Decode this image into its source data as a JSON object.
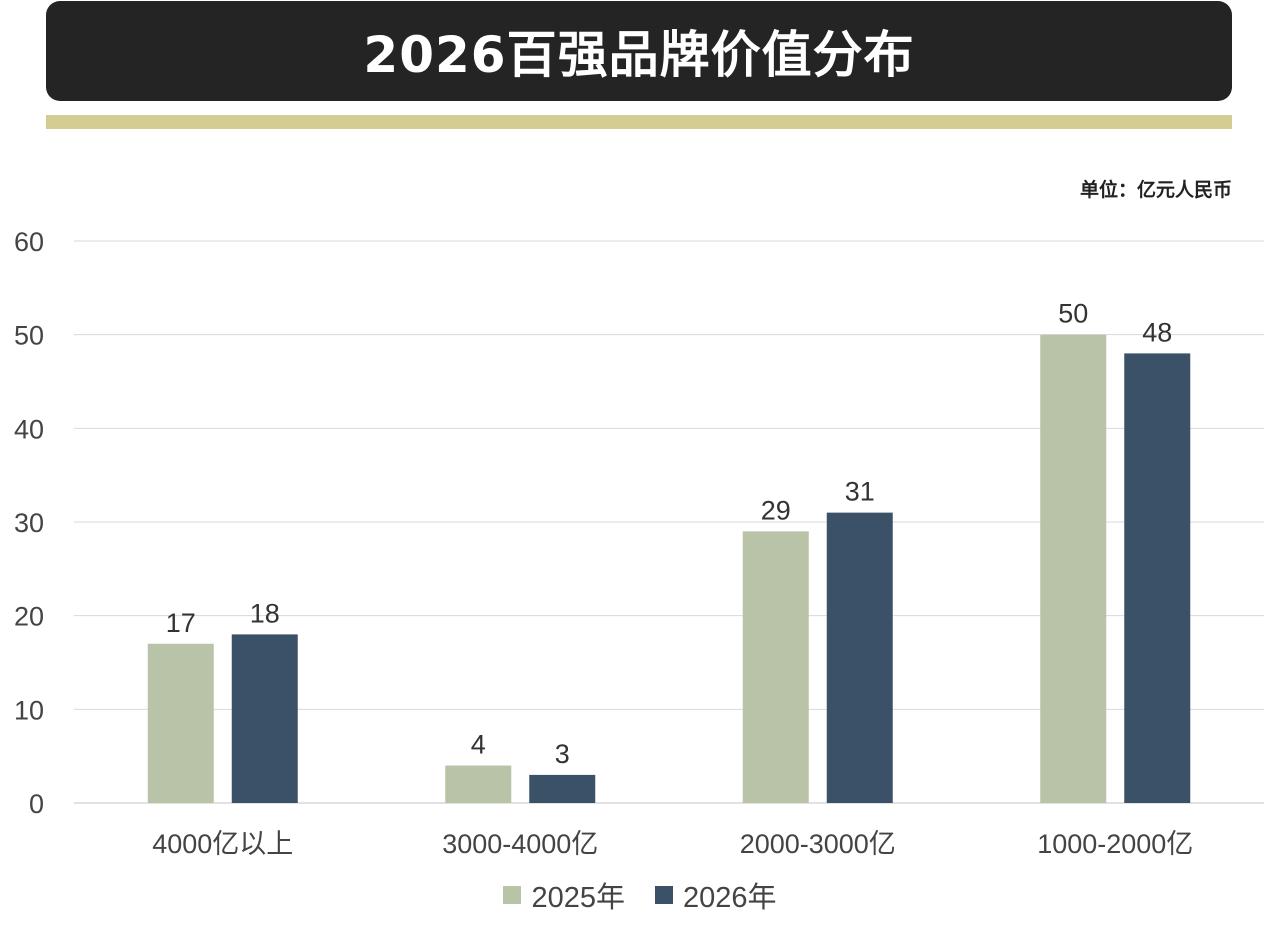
{
  "header": {
    "title": "2026百强品牌价值分布",
    "unit": "单位：亿元人民币"
  },
  "colors": {
    "title_bg": "#242424",
    "accent": "#d3cd93",
    "series_2025": "#b8c3a8",
    "series_2026": "#3a5168",
    "grid": "#d9d9d9",
    "text": "#444444"
  },
  "chart_data": {
    "type": "bar",
    "categories": [
      "4000亿以上",
      "3000-4000亿",
      "2000-3000亿",
      "1000-2000亿"
    ],
    "series": [
      {
        "name": "2025年",
        "values": [
          17,
          4,
          29,
          50
        ]
      },
      {
        "name": "2026年",
        "values": [
          18,
          3,
          31,
          48
        ]
      }
    ],
    "yticks": [
      0,
      10,
      20,
      30,
      40,
      50,
      60
    ],
    "ylim": [
      0,
      60
    ],
    "grid": true,
    "legend": "bottom-center",
    "data_labels": true
  }
}
